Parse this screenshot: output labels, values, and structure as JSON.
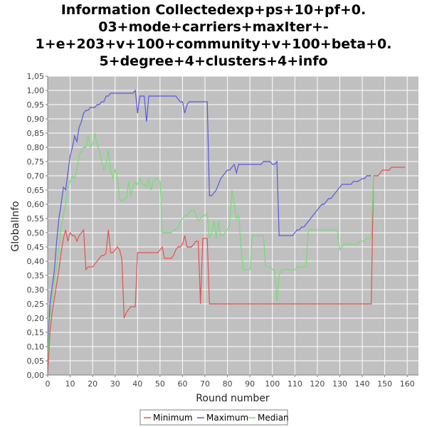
{
  "chart_data": {
    "type": "line",
    "title_lines": [
      "Information Collectedexp+ps+10+pf+0.",
      "03+mode+carriers+maxIter+-",
      "1+e+203+v+100+community+v+100+beta+0.",
      "5+degree+4+clusters+4+info"
    ],
    "xlabel": "Round number",
    "ylabel": "GlobalInfo",
    "xlim": [
      0,
      165
    ],
    "ylim": [
      0,
      1.05
    ],
    "xticks": [
      0,
      10,
      20,
      30,
      40,
      50,
      60,
      70,
      80,
      90,
      100,
      110,
      120,
      130,
      140,
      150,
      160
    ],
    "yticks": [
      "0,00",
      "0,05",
      "0,10",
      "0,15",
      "0,20",
      "0,25",
      "0,30",
      "0,35",
      "0,40",
      "0,45",
      "0,50",
      "0,55",
      "0,60",
      "0,65",
      "0,70",
      "0,75",
      "0,80",
      "0,85",
      "0,90",
      "0,95",
      "1,00",
      "1,05"
    ],
    "grid": true,
    "legend_position": "bottom",
    "series": [
      {
        "name": "Minimum",
        "color": "#e8504f",
        "points": [
          [
            0,
            0.0
          ],
          [
            1,
            0.15
          ],
          [
            2,
            0.22
          ],
          [
            3,
            0.27
          ],
          [
            4,
            0.32
          ],
          [
            5,
            0.37
          ],
          [
            6,
            0.43
          ],
          [
            7,
            0.48
          ],
          [
            8,
            0.51
          ],
          [
            9,
            0.47
          ],
          [
            10,
            0.5
          ],
          [
            11,
            0.49
          ],
          [
            12,
            0.49
          ],
          [
            13,
            0.47
          ],
          [
            14,
            0.49
          ],
          [
            15,
            0.5
          ],
          [
            16,
            0.51
          ],
          [
            17,
            0.37
          ],
          [
            18,
            0.38
          ],
          [
            19,
            0.38
          ],
          [
            20,
            0.38
          ],
          [
            21,
            0.39
          ],
          [
            22,
            0.4
          ],
          [
            23,
            0.41
          ],
          [
            24,
            0.42
          ],
          [
            25,
            0.42
          ],
          [
            26,
            0.43
          ],
          [
            27,
            0.51
          ],
          [
            28,
            0.43
          ],
          [
            29,
            0.43
          ],
          [
            30,
            0.44
          ],
          [
            31,
            0.45
          ],
          [
            32,
            0.44
          ],
          [
            33,
            0.41
          ],
          [
            34,
            0.2
          ],
          [
            35,
            0.22
          ],
          [
            36,
            0.23
          ],
          [
            37,
            0.24
          ],
          [
            38,
            0.24
          ],
          [
            39,
            0.24
          ],
          [
            40,
            0.43
          ],
          [
            41,
            0.43
          ],
          [
            45,
            0.43
          ],
          [
            49,
            0.43
          ],
          [
            50,
            0.44
          ],
          [
            51,
            0.45
          ],
          [
            52,
            0.41
          ],
          [
            55,
            0.41
          ],
          [
            56,
            0.42
          ],
          [
            57,
            0.44
          ],
          [
            58,
            0.45
          ],
          [
            59,
            0.45
          ],
          [
            60,
            0.46
          ],
          [
            61,
            0.49
          ],
          [
            62,
            0.45
          ],
          [
            64,
            0.45
          ],
          [
            65,
            0.46
          ],
          [
            66,
            0.47
          ],
          [
            67,
            0.47
          ],
          [
            68,
            0.25
          ],
          [
            69,
            0.48
          ],
          [
            70,
            0.48
          ],
          [
            71,
            0.48
          ],
          [
            72,
            0.25
          ],
          [
            100,
            0.25
          ],
          [
            120,
            0.25
          ],
          [
            144,
            0.25
          ],
          [
            145,
            0.7
          ],
          [
            147,
            0.7
          ],
          [
            148,
            0.71
          ],
          [
            149,
            0.72
          ],
          [
            150,
            0.72
          ],
          [
            152,
            0.72
          ],
          [
            153,
            0.73
          ],
          [
            155,
            0.73
          ],
          [
            157,
            0.73
          ],
          [
            159,
            0.73
          ]
        ]
      },
      {
        "name": "Maximum",
        "color": "#5858e0",
        "points": [
          [
            0,
            0.05
          ],
          [
            1,
            0.25
          ],
          [
            2,
            0.31
          ],
          [
            3,
            0.37
          ],
          [
            4,
            0.47
          ],
          [
            5,
            0.55
          ],
          [
            6,
            0.6
          ],
          [
            7,
            0.66
          ],
          [
            8,
            0.65
          ],
          [
            9,
            0.71
          ],
          [
            10,
            0.77
          ],
          [
            11,
            0.8
          ],
          [
            12,
            0.84
          ],
          [
            13,
            0.82
          ],
          [
            14,
            0.87
          ],
          [
            15,
            0.89
          ],
          [
            16,
            0.92
          ],
          [
            17,
            0.93
          ],
          [
            18,
            0.93
          ],
          [
            19,
            0.94
          ],
          [
            20,
            0.94
          ],
          [
            21,
            0.94
          ],
          [
            22,
            0.95
          ],
          [
            23,
            0.95
          ],
          [
            24,
            0.96
          ],
          [
            25,
            0.96
          ],
          [
            26,
            0.98
          ],
          [
            27,
            0.98
          ],
          [
            28,
            0.99
          ],
          [
            29,
            0.99
          ],
          [
            30,
            0.99
          ],
          [
            35,
            0.99
          ],
          [
            38,
            0.99
          ],
          [
            39,
            1.0
          ],
          [
            40,
            0.92
          ],
          [
            41,
            0.98
          ],
          [
            42,
            0.98
          ],
          [
            43,
            0.98
          ],
          [
            44,
            0.89
          ],
          [
            45,
            0.98
          ],
          [
            50,
            0.98
          ],
          [
            55,
            0.98
          ],
          [
            57,
            0.98
          ],
          [
            58,
            0.97
          ],
          [
            59,
            0.96
          ],
          [
            60,
            0.96
          ],
          [
            61,
            0.92
          ],
          [
            62,
            0.95
          ],
          [
            63,
            0.96
          ],
          [
            68,
            0.96
          ],
          [
            71,
            0.96
          ],
          [
            72,
            0.63
          ],
          [
            73,
            0.63
          ],
          [
            74,
            0.64
          ],
          [
            75,
            0.65
          ],
          [
            76,
            0.67
          ],
          [
            77,
            0.69
          ],
          [
            78,
            0.7
          ],
          [
            79,
            0.71
          ],
          [
            80,
            0.72
          ],
          [
            81,
            0.72
          ],
          [
            82,
            0.73
          ],
          [
            83,
            0.74
          ],
          [
            84,
            0.71
          ],
          [
            85,
            0.74
          ],
          [
            90,
            0.74
          ],
          [
            95,
            0.74
          ],
          [
            96,
            0.75
          ],
          [
            99,
            0.75
          ],
          [
            100,
            0.74
          ],
          [
            101,
            0.74
          ],
          [
            102,
            0.75
          ],
          [
            103,
            0.49
          ],
          [
            105,
            0.49
          ],
          [
            108,
            0.49
          ],
          [
            109,
            0.49
          ],
          [
            110,
            0.5
          ],
          [
            111,
            0.51
          ],
          [
            112,
            0.51
          ],
          [
            113,
            0.52
          ],
          [
            114,
            0.52
          ],
          [
            115,
            0.53
          ],
          [
            116,
            0.54
          ],
          [
            117,
            0.55
          ],
          [
            118,
            0.56
          ],
          [
            119,
            0.57
          ],
          [
            120,
            0.58
          ],
          [
            121,
            0.59
          ],
          [
            122,
            0.6
          ],
          [
            123,
            0.6
          ],
          [
            124,
            0.61
          ],
          [
            125,
            0.62
          ],
          [
            126,
            0.62
          ],
          [
            127,
            0.63
          ],
          [
            128,
            0.64
          ],
          [
            129,
            0.65
          ],
          [
            130,
            0.66
          ],
          [
            131,
            0.67
          ],
          [
            134,
            0.67
          ],
          [
            135,
            0.67
          ],
          [
            136,
            0.68
          ],
          [
            138,
            0.68
          ],
          [
            140,
            0.69
          ],
          [
            141,
            0.69
          ],
          [
            142,
            0.7
          ],
          [
            144,
            0.7
          ]
        ]
      },
      {
        "name": "Median",
        "color": "#70e070",
        "points": [
          [
            0,
            0.05
          ],
          [
            1,
            0.2
          ],
          [
            2,
            0.27
          ],
          [
            3,
            0.33
          ],
          [
            4,
            0.38
          ],
          [
            5,
            0.45
          ],
          [
            6,
            0.52
          ],
          [
            7,
            0.56
          ],
          [
            8,
            0.6
          ],
          [
            9,
            0.66
          ],
          [
            10,
            0.68
          ],
          [
            11,
            0.7
          ],
          [
            12,
            0.69
          ],
          [
            13,
            0.72
          ],
          [
            14,
            0.77
          ],
          [
            15,
            0.79
          ],
          [
            16,
            0.8
          ],
          [
            17,
            0.8
          ],
          [
            18,
            0.84
          ],
          [
            19,
            0.8
          ],
          [
            20,
            0.81
          ],
          [
            21,
            0.85
          ],
          [
            22,
            0.81
          ],
          [
            23,
            0.79
          ],
          [
            24,
            0.75
          ],
          [
            25,
            0.72
          ],
          [
            26,
            0.74
          ],
          [
            27,
            0.79
          ],
          [
            28,
            0.72
          ],
          [
            29,
            0.69
          ],
          [
            30,
            0.72
          ],
          [
            31,
            0.69
          ],
          [
            32,
            0.62
          ],
          [
            33,
            0.61
          ],
          [
            34,
            0.62
          ],
          [
            35,
            0.62
          ],
          [
            36,
            0.68
          ],
          [
            37,
            0.63
          ],
          [
            38,
            0.66
          ],
          [
            39,
            0.68
          ],
          [
            40,
            0.67
          ],
          [
            41,
            0.69
          ],
          [
            42,
            0.67
          ],
          [
            43,
            0.67
          ],
          [
            44,
            0.66
          ],
          [
            45,
            0.69
          ],
          [
            46,
            0.65
          ],
          [
            47,
            0.68
          ],
          [
            48,
            0.69
          ],
          [
            49,
            0.69
          ],
          [
            50,
            0.68
          ],
          [
            51,
            0.5
          ],
          [
            55,
            0.5
          ],
          [
            56,
            0.51
          ],
          [
            57,
            0.51
          ],
          [
            58,
            0.52
          ],
          [
            59,
            0.54
          ],
          [
            60,
            0.55
          ],
          [
            61,
            0.56
          ],
          [
            62,
            0.56
          ],
          [
            63,
            0.57
          ],
          [
            64,
            0.58
          ],
          [
            65,
            0.58
          ],
          [
            66,
            0.56
          ],
          [
            67,
            0.54
          ],
          [
            68,
            0.55
          ],
          [
            69,
            0.56
          ],
          [
            70,
            0.56
          ],
          [
            71,
            0.57
          ],
          [
            72,
            0.48
          ],
          [
            73,
            0.5
          ],
          [
            74,
            0.54
          ],
          [
            75,
            0.48
          ],
          [
            76,
            0.54
          ],
          [
            77,
            0.49
          ],
          [
            78,
            0.49
          ],
          [
            79,
            0.5
          ],
          [
            80,
            0.51
          ],
          [
            81,
            0.53
          ],
          [
            82,
            0.65
          ],
          [
            83,
            0.6
          ],
          [
            84,
            0.55
          ],
          [
            85,
            0.56
          ],
          [
            86,
            0.45
          ],
          [
            87,
            0.37
          ],
          [
            88,
            0.37
          ],
          [
            90,
            0.37
          ],
          [
            91,
            0.49
          ],
          [
            94,
            0.49
          ],
          [
            95,
            0.49
          ],
          [
            96,
            0.49
          ],
          [
            97,
            0.38
          ],
          [
            98,
            0.38
          ],
          [
            99,
            0.38
          ],
          [
            100,
            0.37
          ],
          [
            101,
            0.37
          ],
          [
            102,
            0.26
          ],
          [
            103,
            0.35
          ],
          [
            104,
            0.37
          ],
          [
            105,
            0.37
          ],
          [
            110,
            0.37
          ],
          [
            111,
            0.38
          ],
          [
            115,
            0.38
          ],
          [
            116,
            0.51
          ],
          [
            120,
            0.51
          ],
          [
            125,
            0.51
          ],
          [
            129,
            0.51
          ],
          [
            130,
            0.44
          ],
          [
            131,
            0.45
          ],
          [
            132,
            0.46
          ],
          [
            135,
            0.46
          ],
          [
            138,
            0.46
          ],
          [
            139,
            0.47
          ],
          [
            141,
            0.47
          ],
          [
            142,
            0.48
          ],
          [
            144,
            0.48
          ],
          [
            145,
            0.7
          ]
        ]
      }
    ]
  }
}
